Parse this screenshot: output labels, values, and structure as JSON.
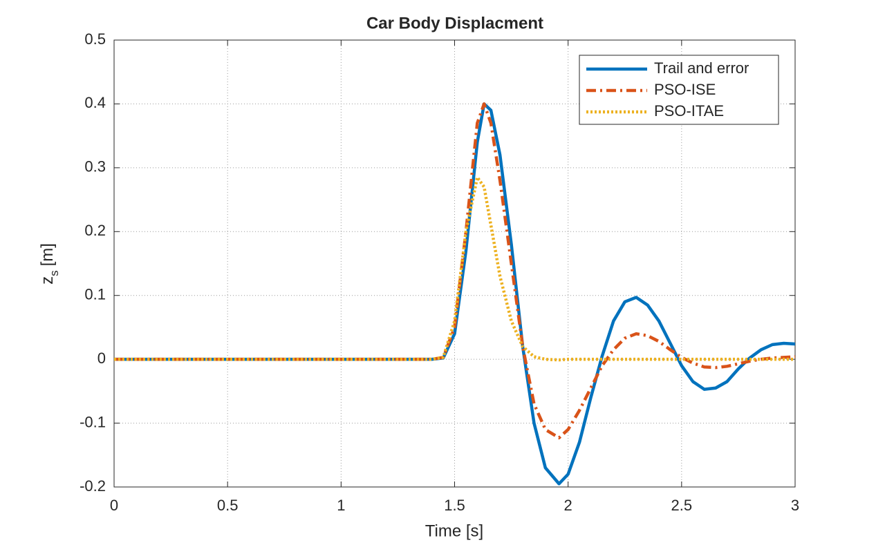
{
  "chart_data": {
    "type": "line",
    "title": "Car Body Displacment",
    "xlabel": "Time [s]",
    "ylabel": {
      "base": "z",
      "subscript": "s",
      "suffix": "[m]"
    },
    "x": [
      0,
      1.4,
      1.45,
      1.5,
      1.55,
      1.6,
      1.63,
      1.66,
      1.7,
      1.75,
      1.8,
      1.85,
      1.9,
      1.96,
      2.0,
      2.05,
      2.1,
      2.15,
      2.2,
      2.25,
      2.3,
      2.35,
      2.4,
      2.45,
      2.5,
      2.55,
      2.6,
      2.65,
      2.7,
      2.75,
      2.8,
      2.85,
      2.9,
      2.95,
      3.0
    ],
    "series": [
      {
        "name": "Trail and error",
        "color": "#0072bd",
        "linestyle": "solid",
        "values": [
          0,
          0,
          0.002,
          0.04,
          0.17,
          0.34,
          0.4,
          0.39,
          0.32,
          0.18,
          0.02,
          -0.1,
          -0.17,
          -0.195,
          -0.18,
          -0.13,
          -0.06,
          0.005,
          0.06,
          0.09,
          0.097,
          0.085,
          0.06,
          0.025,
          -0.01,
          -0.035,
          -0.047,
          -0.045,
          -0.035,
          -0.015,
          0.002,
          0.015,
          0.023,
          0.025,
          0.024
        ]
      },
      {
        "name": "PSO-ISE",
        "color": "#d95319",
        "linestyle": "dashdot",
        "values": [
          0,
          0,
          0.003,
          0.05,
          0.2,
          0.37,
          0.4,
          0.37,
          0.28,
          0.15,
          0.02,
          -0.07,
          -0.11,
          -0.123,
          -0.11,
          -0.08,
          -0.045,
          -0.01,
          0.015,
          0.033,
          0.04,
          0.037,
          0.028,
          0.015,
          0.003,
          -0.006,
          -0.012,
          -0.013,
          -0.011,
          -0.007,
          -0.003,
          0,
          0.002,
          0.003,
          0.004
        ]
      },
      {
        "name": "PSO-ITAE",
        "color": "#edb120",
        "linestyle": "dotted",
        "values": [
          0,
          0,
          0.003,
          0.06,
          0.2,
          0.285,
          0.27,
          0.21,
          0.13,
          0.06,
          0.02,
          0.004,
          0,
          -0.001,
          0,
          0,
          0,
          0,
          0,
          0,
          0,
          0,
          0,
          0,
          0,
          0,
          0,
          0,
          0,
          0,
          0,
          0,
          0,
          0,
          0
        ]
      }
    ],
    "xlim": [
      0,
      3
    ],
    "xticks": [
      0,
      0.5,
      1,
      1.5,
      2,
      2.5,
      3
    ],
    "ylim": [
      -0.2,
      0.5
    ],
    "yticks": [
      -0.2,
      -0.1,
      0,
      0.1,
      0.2,
      0.3,
      0.4,
      0.5
    ],
    "grid": true,
    "legend": "top-right"
  }
}
